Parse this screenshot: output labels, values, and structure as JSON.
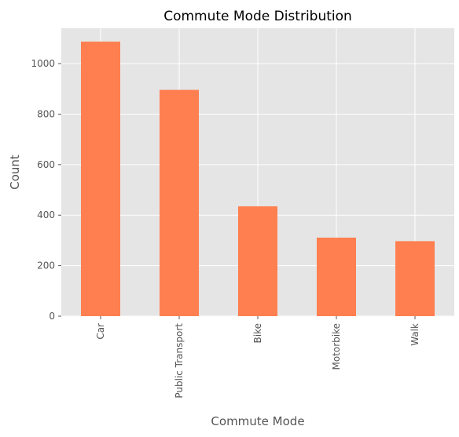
{
  "chart_data": {
    "type": "bar",
    "title": "Commute Mode Distribution",
    "xlabel": "Commute Mode",
    "ylabel": "Count",
    "categories": [
      "Car",
      "Public Transport",
      "Bike",
      "Motorbike",
      "Walk"
    ],
    "values": [
      1087,
      896,
      435,
      311,
      297
    ],
    "ylim": [
      0,
      1140
    ],
    "yticks": [
      0,
      200,
      400,
      600,
      800,
      1000
    ],
    "grid": true,
    "bar_color": "#ff7f50",
    "background_color": "#e5e5e5"
  }
}
